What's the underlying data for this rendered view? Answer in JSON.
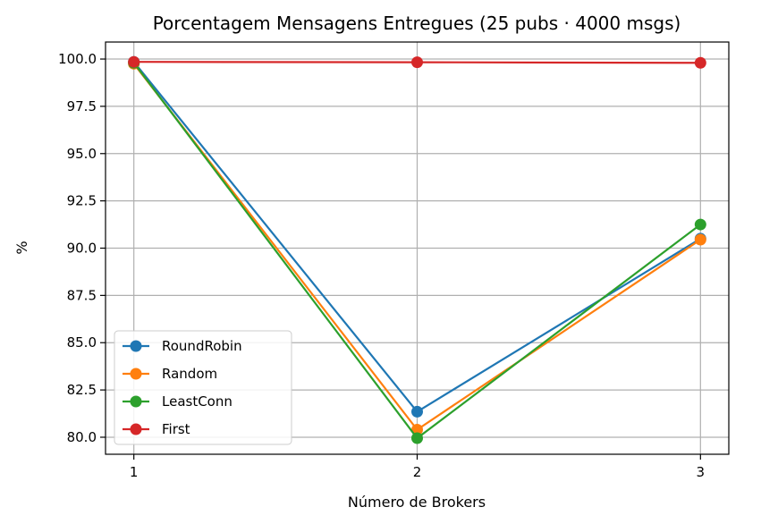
{
  "chart_data": {
    "type": "line",
    "title": "Porcentagem Mensagens Entregues (25 pubs · 4000 msgs)",
    "xlabel": "Número de Brokers",
    "ylabel": "%",
    "x": [
      1,
      2,
      3
    ],
    "x_ticks": [
      "1",
      "2",
      "3"
    ],
    "y_ticks": [
      "80.0",
      "82.5",
      "85.0",
      "87.5",
      "90.0",
      "92.5",
      "95.0",
      "97.5",
      "100.0"
    ],
    "xlim": [
      0.9,
      3.1
    ],
    "ylim": [
      79.1,
      100.9
    ],
    "grid": true,
    "legend_position": "lower-left",
    "series": [
      {
        "name": "RoundRobin",
        "color": "#1f77b4",
        "values": [
          99.85,
          81.35,
          90.5
        ]
      },
      {
        "name": "Random",
        "color": "#ff7f0e",
        "values": [
          99.75,
          80.4,
          90.45
        ]
      },
      {
        "name": "LeastConn",
        "color": "#2ca02c",
        "values": [
          99.8,
          79.95,
          91.25
        ]
      },
      {
        "name": "First",
        "color": "#d62728",
        "values": [
          99.85,
          99.83,
          99.8
        ]
      }
    ]
  }
}
